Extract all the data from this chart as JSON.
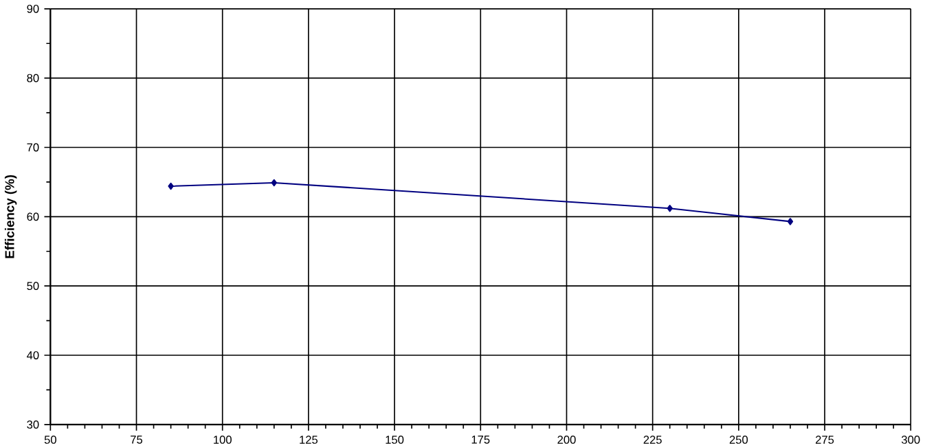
{
  "chart_data": {
    "type": "line",
    "ylabel": "Efficiency (%)",
    "x": [
      85,
      115,
      230,
      265
    ],
    "series": [
      {
        "color": "#000080",
        "values": [
          64.4,
          64.9,
          61.2,
          59.3
        ]
      }
    ],
    "xlim": [
      50,
      300
    ],
    "xticks": [
      50,
      75,
      100,
      125,
      150,
      175,
      200,
      225,
      250,
      275,
      300
    ],
    "ylim": [
      30,
      90
    ],
    "yticks": [
      30,
      40,
      50,
      60,
      70,
      80,
      90
    ],
    "grid": true,
    "marker": "diamond",
    "line_style": "solid"
  }
}
